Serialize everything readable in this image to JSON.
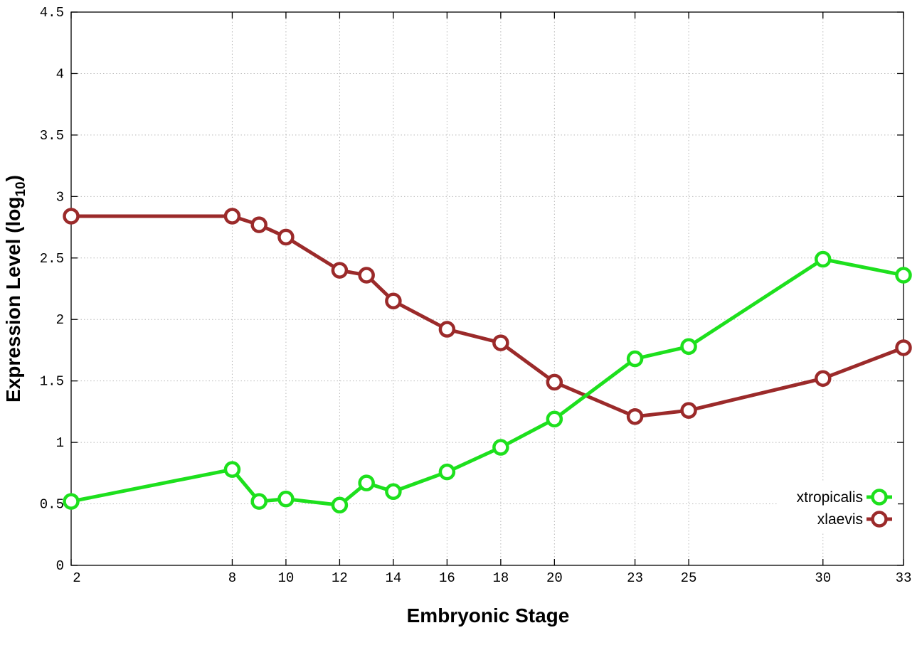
{
  "chart_data": {
    "type": "line",
    "xlabel": "Embryonic Stage",
    "ylabel": "Expression Level (log",
    "ylabel_subscript": "10",
    "ylabel_suffix": ")",
    "x_ticks": [
      "2",
      "8",
      "10",
      "12",
      "14",
      "16",
      "18",
      "20",
      "23",
      "25",
      "30",
      "33"
    ],
    "x_categories": [
      "2",
      "8",
      "9",
      "10",
      "12",
      "13",
      "14",
      "16",
      "18",
      "20",
      "23",
      "25",
      "30",
      "33"
    ],
    "x_positions": [
      0,
      6,
      7,
      8,
      10,
      11,
      12,
      14,
      16,
      18,
      21,
      23,
      28,
      31
    ],
    "y_ticks": [
      "0",
      "0.5",
      "1",
      "1.5",
      "2",
      "2.5",
      "3",
      "3.5",
      "4",
      "4.5"
    ],
    "ylim": [
      0,
      4.5
    ],
    "grid": true,
    "legend_position": "bottom-right",
    "series": [
      {
        "name": "xtropicalis",
        "color": "#1de01d",
        "values": [
          0.52,
          0.78,
          0.52,
          0.54,
          0.49,
          0.67,
          0.6,
          0.76,
          0.96,
          1.19,
          1.68,
          1.78,
          2.49,
          2.36
        ]
      },
      {
        "name": "xlaevis",
        "color": "#9b2a2a",
        "values": [
          2.84,
          2.84,
          2.77,
          2.67,
          2.4,
          2.36,
          2.15,
          1.92,
          1.81,
          1.49,
          1.21,
          1.26,
          1.52,
          1.77
        ]
      }
    ]
  }
}
